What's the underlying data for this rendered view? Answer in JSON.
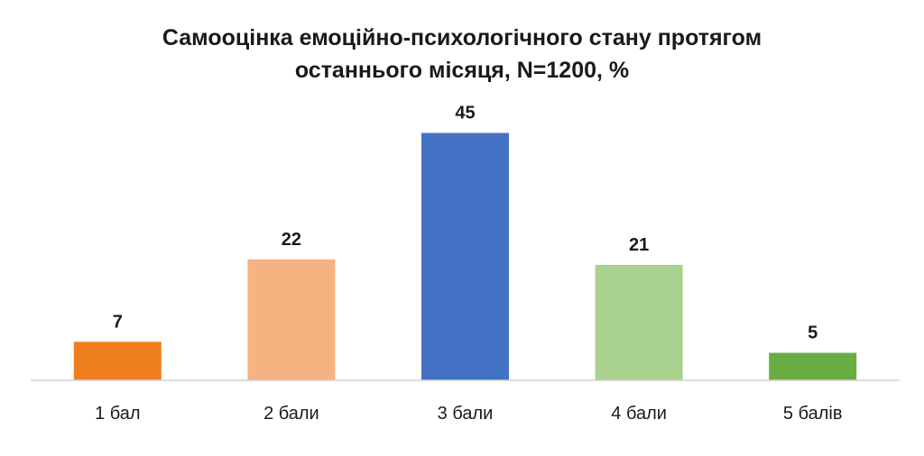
{
  "chart_data": {
    "type": "bar",
    "title_lines": [
      "Самооцінка емоційно-психологічного стану протягом",
      "останнього місяця, N=1200, %"
    ],
    "categories": [
      "1 бал",
      "2 бали",
      "3 бали",
      "4 бали",
      "5 балів"
    ],
    "values": [
      7,
      22,
      45,
      21,
      5
    ],
    "colors": [
      "#ef7f1e",
      "#f5b382",
      "#4472c4",
      "#a9d18e",
      "#6aac44"
    ],
    "xlabel": "",
    "ylabel": "",
    "ylim": [
      0,
      60
    ],
    "grid": false,
    "legend": "none",
    "data_labels": true
  }
}
